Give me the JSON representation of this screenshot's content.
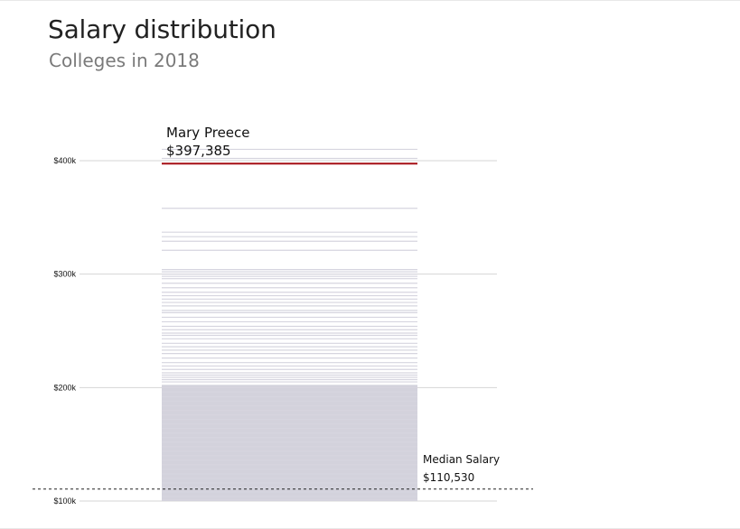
{
  "title": "Salary distribution",
  "subtitle": "Colleges in 2018",
  "chart_data": {
    "type": "bar",
    "title": "Salary distribution",
    "subtitle": "Colleges in 2018",
    "ylim": [
      100000,
      410000
    ],
    "y_ticks": [
      100000,
      200000,
      300000,
      400000
    ],
    "y_tick_labels": [
      "$100k",
      "$200k",
      "$300k",
      "$400k"
    ],
    "grid": true,
    "salaries": [
      397385,
      410000,
      402000,
      358000,
      337000,
      333000,
      329000,
      321000,
      304000,
      302000,
      300000,
      298000,
      296000,
      292000,
      288000,
      284000,
      281000,
      278000,
      275000,
      272000,
      268000,
      266000,
      262000,
      258000,
      254000,
      251000,
      248000,
      246000,
      243000,
      239000,
      236000,
      233000,
      230000,
      226000,
      222000,
      219000,
      216000,
      213000,
      211000,
      209000,
      207000,
      205000,
      202000,
      200000,
      196000,
      192000,
      188000,
      184000,
      180000,
      176000,
      172000,
      168000,
      164000,
      160000,
      156000,
      152000,
      148000,
      144000,
      140000,
      136000,
      132000,
      128000,
      124000,
      120000,
      116000,
      112000,
      108000,
      104000,
      101000
    ],
    "highlight": {
      "name": "Mary Preece",
      "value": 397385,
      "label": "$397,385",
      "color": "#a50f15"
    },
    "median": {
      "label": "Median Salary",
      "value": 110530,
      "value_label": "$110,530"
    }
  }
}
